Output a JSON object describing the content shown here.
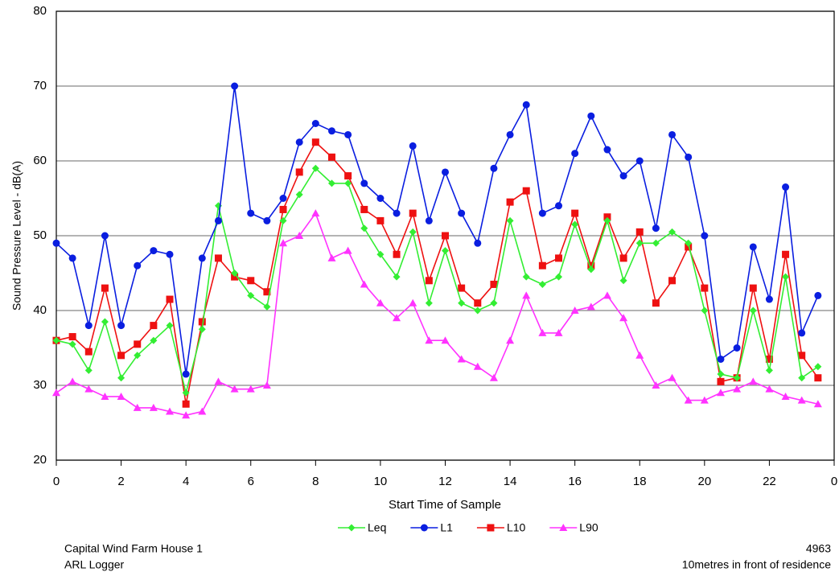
{
  "chart_data": {
    "type": "line",
    "y_label": "Sound Pressure Level - dB(A)",
    "x_label": "Start Time of Sample",
    "ylim": [
      20,
      80
    ],
    "yticks": [
      20,
      30,
      40,
      50,
      60,
      70,
      80
    ],
    "xlim": [
      0,
      24
    ],
    "xticks": [
      0,
      2,
      4,
      6,
      8,
      10,
      12,
      14,
      16,
      18,
      20,
      22,
      {
        "value": 24,
        "label": "0"
      }
    ],
    "grid": true,
    "x": [
      0,
      0.5,
      1,
      1.5,
      2,
      2.5,
      3,
      3.5,
      4,
      4.5,
      5,
      5.5,
      6,
      6.5,
      7,
      7.5,
      8,
      8.5,
      9,
      9.5,
      10,
      10.5,
      11,
      11.5,
      12,
      12.5,
      13,
      13.5,
      14,
      14.5,
      15,
      15.5,
      16,
      16.5,
      17,
      17.5,
      18,
      18.5,
      19,
      19.5,
      20,
      20.5,
      21,
      21.5,
      22,
      22.5,
      23,
      23.5
    ],
    "series": [
      {
        "name": "Leq",
        "color": "#33ee33",
        "marker": "diamond",
        "values": [
          36,
          35.5,
          32,
          38.5,
          31,
          34,
          36,
          38,
          29,
          37.5,
          54,
          45,
          42,
          40.5,
          52,
          55.5,
          59,
          57,
          57,
          51,
          47.5,
          44.5,
          50.5,
          41,
          48,
          41,
          40,
          41,
          52,
          44.5,
          43.5,
          44.5,
          51.5,
          45.5,
          52,
          44,
          49,
          49,
          50.5,
          49,
          40,
          31.5,
          31,
          40,
          32,
          44.5,
          31,
          32.5
        ]
      },
      {
        "name": "L1",
        "color": "#0a1ee0",
        "marker": "circle",
        "values": [
          49,
          47,
          38,
          50,
          38,
          46,
          48,
          47.5,
          31.5,
          47,
          52,
          70,
          53,
          52,
          55,
          62.5,
          65,
          64,
          63.5,
          57,
          55,
          53,
          62,
          52,
          58.5,
          53,
          49,
          59,
          63.5,
          67.5,
          53,
          54,
          61,
          66,
          61.5,
          58,
          60,
          51,
          63.5,
          60.5,
          50,
          33.5,
          35,
          48.5,
          41.5,
          56.5,
          37,
          42
        ]
      },
      {
        "name": "L10",
        "color": "#ee1111",
        "marker": "square",
        "values": [
          36,
          36.5,
          34.5,
          43,
          34,
          35.5,
          38,
          41.5,
          27.5,
          38.5,
          47,
          44.5,
          44,
          42.5,
          53.5,
          58.5,
          62.5,
          60.5,
          58,
          53.5,
          52,
          47.5,
          53,
          44,
          50,
          43,
          41,
          43.5,
          54.5,
          56,
          46,
          47,
          53,
          46,
          52.5,
          47,
          50.5,
          41,
          44,
          48.5,
          43,
          30.5,
          31,
          43,
          33.5,
          47.5,
          34,
          31
        ]
      },
      {
        "name": "L90",
        "color": "#ff33ff",
        "marker": "triangle",
        "values": [
          29,
          30.5,
          29.5,
          28.5,
          28.5,
          27,
          27,
          26.5,
          26,
          26.5,
          30.5,
          29.5,
          29.5,
          30,
          49,
          50,
          53,
          47,
          48,
          43.5,
          41,
          39,
          41,
          36,
          36,
          33.5,
          32.5,
          31,
          36,
          42,
          37,
          37,
          40,
          40.5,
          42,
          39,
          34,
          30,
          31,
          28,
          28,
          29,
          29.5,
          30.5,
          29.5,
          28.5,
          28,
          27.5
        ]
      }
    ],
    "footer": {
      "left": [
        "Capital Wind Farm House 1",
        "ARL Logger"
      ],
      "right": [
        "4963",
        "10metres in front of residence"
      ]
    }
  }
}
